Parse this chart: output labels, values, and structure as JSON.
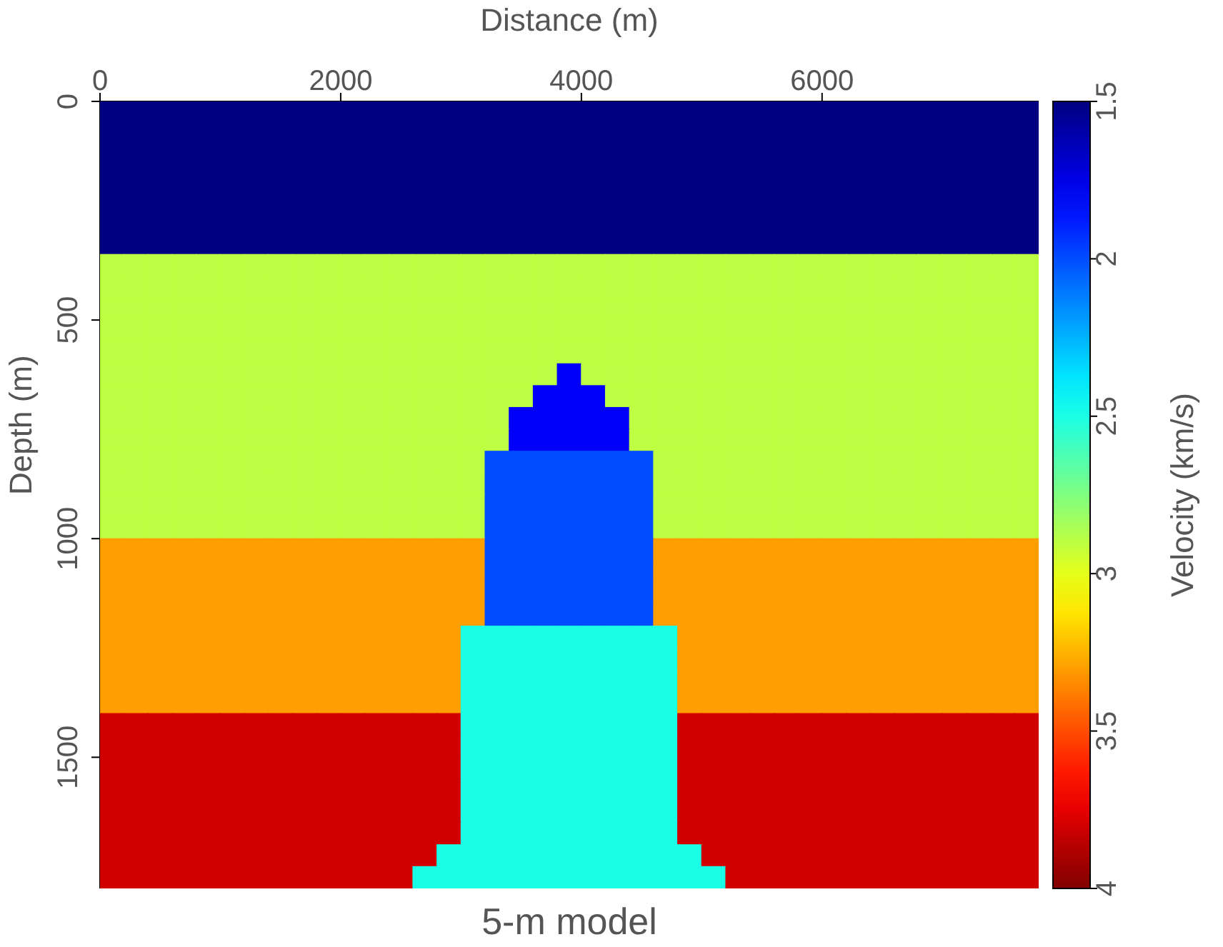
{
  "chart_data": {
    "type": "heatmap",
    "title": "5-m model",
    "xlabel": "Distance (m)",
    "ylabel": "Depth (m)",
    "clabel": "Velocity (km/s)",
    "xlim": [
      0,
      7800
    ],
    "ylim": [
      1800,
      0
    ],
    "xticks": [
      0,
      2000,
      4000,
      6000
    ],
    "yticks": [
      0,
      500,
      1000,
      1500
    ],
    "clim": [
      1.5,
      4
    ],
    "cticks": [
      1.5,
      2,
      2.5,
      3,
      3.5,
      4
    ],
    "cells": [
      [
        1.5,
        1.5,
        1.5,
        1.5,
        1.5,
        1.5,
        1.5,
        1.5,
        1.5,
        1.5,
        1.5,
        1.5,
        1.5,
        1.5,
        1.5,
        1.5,
        1.5,
        1.5,
        1.5,
        1.5,
        1.5,
        1.5,
        1.5,
        1.5,
        1.5,
        1.5,
        1.5,
        1.5,
        1.5,
        1.5,
        1.5,
        1.5,
        1.5,
        1.5,
        1.5,
        1.5,
        1.5,
        1.5,
        1.5
      ],
      [
        1.5,
        1.5,
        1.5,
        1.5,
        1.5,
        1.5,
        1.5,
        1.5,
        1.5,
        1.5,
        1.5,
        1.5,
        1.5,
        1.5,
        1.5,
        1.5,
        1.5,
        1.5,
        1.5,
        1.5,
        1.5,
        1.5,
        1.5,
        1.5,
        1.5,
        1.5,
        1.5,
        1.5,
        1.5,
        1.5,
        1.5,
        1.5,
        1.5,
        1.5,
        1.5,
        1.5,
        1.5,
        1.5,
        1.5
      ],
      [
        1.5,
        1.5,
        1.5,
        1.5,
        1.5,
        1.5,
        1.5,
        1.5,
        1.5,
        1.5,
        1.5,
        1.5,
        1.5,
        1.5,
        1.5,
        1.5,
        1.5,
        1.5,
        1.5,
        1.5,
        1.5,
        1.5,
        1.5,
        1.5,
        1.5,
        1.5,
        1.5,
        1.5,
        1.5,
        1.5,
        1.5,
        1.5,
        1.5,
        1.5,
        1.5,
        1.5,
        1.5,
        1.5,
        1.5
      ],
      [
        1.5,
        1.5,
        1.5,
        1.5,
        1.5,
        1.5,
        1.5,
        1.5,
        1.5,
        1.5,
        1.5,
        1.5,
        1.5,
        1.5,
        1.5,
        1.5,
        1.5,
        1.5,
        1.5,
        1.5,
        1.5,
        1.5,
        1.5,
        1.5,
        1.5,
        1.5,
        1.5,
        1.5,
        1.5,
        1.5,
        1.5,
        1.5,
        1.5,
        1.5,
        1.5,
        1.5,
        1.5,
        1.5,
        1.5
      ],
      [
        1.5,
        1.5,
        1.5,
        1.5,
        1.5,
        1.5,
        1.5,
        1.5,
        1.5,
        1.5,
        1.5,
        1.5,
        1.5,
        1.5,
        1.5,
        1.5,
        1.5,
        1.5,
        1.5,
        1.5,
        1.5,
        1.5,
        1.5,
        1.5,
        1.5,
        1.5,
        1.5,
        1.5,
        1.5,
        1.5,
        1.5,
        1.5,
        1.5,
        1.5,
        1.5,
        1.5,
        1.5,
        1.5,
        1.5
      ],
      [
        1.5,
        1.5,
        1.5,
        1.5,
        1.5,
        1.5,
        1.5,
        1.5,
        1.5,
        1.5,
        1.5,
        1.5,
        1.5,
        1.5,
        1.5,
        1.5,
        1.5,
        1.5,
        1.5,
        1.5,
        1.5,
        1.5,
        1.5,
        1.5,
        1.5,
        1.5,
        1.5,
        1.5,
        1.5,
        1.5,
        1.5,
        1.5,
        1.5,
        1.5,
        1.5,
        1.5,
        1.5,
        1.5,
        1.5
      ],
      [
        1.5,
        1.5,
        1.5,
        1.5,
        1.5,
        1.5,
        1.5,
        1.5,
        1.5,
        1.5,
        1.5,
        1.5,
        1.5,
        1.5,
        1.5,
        1.5,
        1.5,
        1.5,
        1.5,
        1.5,
        1.5,
        1.5,
        1.5,
        1.5,
        1.5,
        1.5,
        1.5,
        1.5,
        1.5,
        1.5,
        1.5,
        1.5,
        1.5,
        1.5,
        1.5,
        1.5,
        1.5,
        1.5,
        1.5
      ],
      [
        2.9,
        2.9,
        2.9,
        2.9,
        2.9,
        2.9,
        2.9,
        2.9,
        2.9,
        2.9,
        2.9,
        2.9,
        2.9,
        2.9,
        2.9,
        2.9,
        2.9,
        2.9,
        2.9,
        2.9,
        2.9,
        2.9,
        2.9,
        2.9,
        2.9,
        2.9,
        2.9,
        2.9,
        2.9,
        2.9,
        2.9,
        2.9,
        2.9,
        2.9,
        2.9,
        2.9,
        2.9,
        2.9,
        2.9
      ],
      [
        2.9,
        2.9,
        2.9,
        2.9,
        2.9,
        2.9,
        2.9,
        2.9,
        2.9,
        2.9,
        2.9,
        2.9,
        2.9,
        2.9,
        2.9,
        2.9,
        2.9,
        2.9,
        2.9,
        2.9,
        2.9,
        2.9,
        2.9,
        2.9,
        2.9,
        2.9,
        2.9,
        2.9,
        2.9,
        2.9,
        2.9,
        2.9,
        2.9,
        2.9,
        2.9,
        2.9,
        2.9,
        2.9,
        2.9
      ],
      [
        2.9,
        2.9,
        2.9,
        2.9,
        2.9,
        2.9,
        2.9,
        2.9,
        2.9,
        2.9,
        2.9,
        2.9,
        2.9,
        2.9,
        2.9,
        2.9,
        2.9,
        2.9,
        2.9,
        2.9,
        2.9,
        2.9,
        2.9,
        2.9,
        2.9,
        2.9,
        2.9,
        2.9,
        2.9,
        2.9,
        2.9,
        2.9,
        2.9,
        2.9,
        2.9,
        2.9,
        2.9,
        2.9,
        2.9
      ],
      [
        2.9,
        2.9,
        2.9,
        2.9,
        2.9,
        2.9,
        2.9,
        2.9,
        2.9,
        2.9,
        2.9,
        2.9,
        2.9,
        2.9,
        2.9,
        2.9,
        2.9,
        2.9,
        2.9,
        2.9,
        2.9,
        2.9,
        2.9,
        2.9,
        2.9,
        2.9,
        2.9,
        2.9,
        2.9,
        2.9,
        2.9,
        2.9,
        2.9,
        2.9,
        2.9,
        2.9,
        2.9,
        2.9,
        2.9
      ],
      [
        2.9,
        2.9,
        2.9,
        2.9,
        2.9,
        2.9,
        2.9,
        2.9,
        2.9,
        2.9,
        2.9,
        2.9,
        2.9,
        2.9,
        2.9,
        2.9,
        2.9,
        2.9,
        2.9,
        2.9,
        2.9,
        2.9,
        2.9,
        2.9,
        2.9,
        2.9,
        2.9,
        2.9,
        2.9,
        2.9,
        2.9,
        2.9,
        2.9,
        2.9,
        2.9,
        2.9,
        2.9,
        2.9,
        2.9
      ],
      [
        2.9,
        2.9,
        2.9,
        2.9,
        2.9,
        2.9,
        2.9,
        2.9,
        2.9,
        2.9,
        2.9,
        2.9,
        2.9,
        2.9,
        2.9,
        2.9,
        2.9,
        2.9,
        2.9,
        1.8,
        2.9,
        2.9,
        2.9,
        2.9,
        2.9,
        2.9,
        2.9,
        2.9,
        2.9,
        2.9,
        2.9,
        2.9,
        2.9,
        2.9,
        2.9,
        2.9,
        2.9,
        2.9,
        2.9
      ],
      [
        2.9,
        2.9,
        2.9,
        2.9,
        2.9,
        2.9,
        2.9,
        2.9,
        2.9,
        2.9,
        2.9,
        2.9,
        2.9,
        2.9,
        2.9,
        2.9,
        2.9,
        2.9,
        1.8,
        1.8,
        1.8,
        2.9,
        2.9,
        2.9,
        2.9,
        2.9,
        2.9,
        2.9,
        2.9,
        2.9,
        2.9,
        2.9,
        2.9,
        2.9,
        2.9,
        2.9,
        2.9,
        2.9,
        2.9
      ],
      [
        2.9,
        2.9,
        2.9,
        2.9,
        2.9,
        2.9,
        2.9,
        2.9,
        2.9,
        2.9,
        2.9,
        2.9,
        2.9,
        2.9,
        2.9,
        2.9,
        2.9,
        1.8,
        1.8,
        1.8,
        1.8,
        1.8,
        2.9,
        2.9,
        2.9,
        2.9,
        2.9,
        2.9,
        2.9,
        2.9,
        2.9,
        2.9,
        2.9,
        2.9,
        2.9,
        2.9,
        2.9,
        2.9,
        2.9
      ],
      [
        2.9,
        2.9,
        2.9,
        2.9,
        2.9,
        2.9,
        2.9,
        2.9,
        2.9,
        2.9,
        2.9,
        2.9,
        2.9,
        2.9,
        2.9,
        2.9,
        2.9,
        1.8,
        1.8,
        1.8,
        1.8,
        1.8,
        2.9,
        2.9,
        2.9,
        2.9,
        2.9,
        2.9,
        2.9,
        2.9,
        2.9,
        2.9,
        2.9,
        2.9,
        2.9,
        2.9,
        2.9,
        2.9,
        2.9
      ],
      [
        2.9,
        2.9,
        2.9,
        2.9,
        2.9,
        2.9,
        2.9,
        2.9,
        2.9,
        2.9,
        2.9,
        2.9,
        2.9,
        2.9,
        2.9,
        2.9,
        2.0,
        2.0,
        2.0,
        2.0,
        2.0,
        2.0,
        2.0,
        2.9,
        2.9,
        2.9,
        2.9,
        2.9,
        2.9,
        2.9,
        2.9,
        2.9,
        2.9,
        2.9,
        2.9,
        2.9,
        2.9,
        2.9,
        2.9
      ],
      [
        2.9,
        2.9,
        2.9,
        2.9,
        2.9,
        2.9,
        2.9,
        2.9,
        2.9,
        2.9,
        2.9,
        2.9,
        2.9,
        2.9,
        2.9,
        2.9,
        2.0,
        2.0,
        2.0,
        2.0,
        2.0,
        2.0,
        2.0,
        2.9,
        2.9,
        2.9,
        2.9,
        2.9,
        2.9,
        2.9,
        2.9,
        2.9,
        2.9,
        2.9,
        2.9,
        2.9,
        2.9,
        2.9,
        2.9
      ],
      [
        2.9,
        2.9,
        2.9,
        2.9,
        2.9,
        2.9,
        2.9,
        2.9,
        2.9,
        2.9,
        2.9,
        2.9,
        2.9,
        2.9,
        2.9,
        2.9,
        2.0,
        2.0,
        2.0,
        2.0,
        2.0,
        2.0,
        2.0,
        2.9,
        2.9,
        2.9,
        2.9,
        2.9,
        2.9,
        2.9,
        2.9,
        2.9,
        2.9,
        2.9,
        2.9,
        2.9,
        2.9,
        2.9,
        2.9
      ],
      [
        2.9,
        2.9,
        2.9,
        2.9,
        2.9,
        2.9,
        2.9,
        2.9,
        2.9,
        2.9,
        2.9,
        2.9,
        2.9,
        2.9,
        2.9,
        2.9,
        2.0,
        2.0,
        2.0,
        2.0,
        2.0,
        2.0,
        2.0,
        2.9,
        2.9,
        2.9,
        2.9,
        2.9,
        2.9,
        2.9,
        2.9,
        2.9,
        2.9,
        2.9,
        2.9,
        2.9,
        2.9,
        2.9,
        2.9
      ],
      [
        3.3,
        3.3,
        3.3,
        3.3,
        3.3,
        3.3,
        3.3,
        3.3,
        3.3,
        3.3,
        3.3,
        3.3,
        3.3,
        3.3,
        3.3,
        3.3,
        2.0,
        2.0,
        2.0,
        2.0,
        2.0,
        2.0,
        2.0,
        3.3,
        3.3,
        3.3,
        3.3,
        3.3,
        3.3,
        3.3,
        3.3,
        3.3,
        3.3,
        3.3,
        3.3,
        3.3,
        3.3,
        3.3,
        3.3
      ],
      [
        3.3,
        3.3,
        3.3,
        3.3,
        3.3,
        3.3,
        3.3,
        3.3,
        3.3,
        3.3,
        3.3,
        3.3,
        3.3,
        3.3,
        3.3,
        3.3,
        2.0,
        2.0,
        2.0,
        2.0,
        2.0,
        2.0,
        2.0,
        3.3,
        3.3,
        3.3,
        3.3,
        3.3,
        3.3,
        3.3,
        3.3,
        3.3,
        3.3,
        3.3,
        3.3,
        3.3,
        3.3,
        3.3,
        3.3
      ],
      [
        3.3,
        3.3,
        3.3,
        3.3,
        3.3,
        3.3,
        3.3,
        3.3,
        3.3,
        3.3,
        3.3,
        3.3,
        3.3,
        3.3,
        3.3,
        3.3,
        2.0,
        2.0,
        2.0,
        2.0,
        2.0,
        2.0,
        2.0,
        3.3,
        3.3,
        3.3,
        3.3,
        3.3,
        3.3,
        3.3,
        3.3,
        3.3,
        3.3,
        3.3,
        3.3,
        3.3,
        3.3,
        3.3,
        3.3
      ],
      [
        3.3,
        3.3,
        3.3,
        3.3,
        3.3,
        3.3,
        3.3,
        3.3,
        3.3,
        3.3,
        3.3,
        3.3,
        3.3,
        3.3,
        3.3,
        3.3,
        2.0,
        2.0,
        2.0,
        2.0,
        2.0,
        2.0,
        2.0,
        3.3,
        3.3,
        3.3,
        3.3,
        3.3,
        3.3,
        3.3,
        3.3,
        3.3,
        3.3,
        3.3,
        3.3,
        3.3,
        3.3,
        3.3,
        3.3
      ],
      [
        3.3,
        3.3,
        3.3,
        3.3,
        3.3,
        3.3,
        3.3,
        3.3,
        3.3,
        3.3,
        3.3,
        3.3,
        3.3,
        3.3,
        3.3,
        2.5,
        2.5,
        2.5,
        2.5,
        2.5,
        2.5,
        2.5,
        2.5,
        2.5,
        3.3,
        3.3,
        3.3,
        3.3,
        3.3,
        3.3,
        3.3,
        3.3,
        3.3,
        3.3,
        3.3,
        3.3,
        3.3,
        3.3,
        3.3
      ],
      [
        3.3,
        3.3,
        3.3,
        3.3,
        3.3,
        3.3,
        3.3,
        3.3,
        3.3,
        3.3,
        3.3,
        3.3,
        3.3,
        3.3,
        3.3,
        2.5,
        2.5,
        2.5,
        2.5,
        2.5,
        2.5,
        2.5,
        2.5,
        2.5,
        3.3,
        3.3,
        3.3,
        3.3,
        3.3,
        3.3,
        3.3,
        3.3,
        3.3,
        3.3,
        3.3,
        3.3,
        3.3,
        3.3,
        3.3
      ],
      [
        3.3,
        3.3,
        3.3,
        3.3,
        3.3,
        3.3,
        3.3,
        3.3,
        3.3,
        3.3,
        3.3,
        3.3,
        3.3,
        3.3,
        3.3,
        2.5,
        2.5,
        2.5,
        2.5,
        2.5,
        2.5,
        2.5,
        2.5,
        2.5,
        3.3,
        3.3,
        3.3,
        3.3,
        3.3,
        3.3,
        3.3,
        3.3,
        3.3,
        3.3,
        3.3,
        3.3,
        3.3,
        3.3,
        3.3
      ],
      [
        3.3,
        3.3,
        3.3,
        3.3,
        3.3,
        3.3,
        3.3,
        3.3,
        3.3,
        3.3,
        3.3,
        3.3,
        3.3,
        3.3,
        3.3,
        2.5,
        2.5,
        2.5,
        2.5,
        2.5,
        2.5,
        2.5,
        2.5,
        2.5,
        3.3,
        3.3,
        3.3,
        3.3,
        3.3,
        3.3,
        3.3,
        3.3,
        3.3,
        3.3,
        3.3,
        3.3,
        3.3,
        3.3,
        3.3
      ],
      [
        3.8,
        3.8,
        3.8,
        3.8,
        3.8,
        3.8,
        3.8,
        3.8,
        3.8,
        3.8,
        3.8,
        3.8,
        3.8,
        3.8,
        3.8,
        2.5,
        2.5,
        2.5,
        2.5,
        2.5,
        2.5,
        2.5,
        2.5,
        2.5,
        3.8,
        3.8,
        3.8,
        3.8,
        3.8,
        3.8,
        3.8,
        3.8,
        3.8,
        3.8,
        3.8,
        3.8,
        3.8,
        3.8,
        3.8
      ],
      [
        3.8,
        3.8,
        3.8,
        3.8,
        3.8,
        3.8,
        3.8,
        3.8,
        3.8,
        3.8,
        3.8,
        3.8,
        3.8,
        3.8,
        3.8,
        2.5,
        2.5,
        2.5,
        2.5,
        2.5,
        2.5,
        2.5,
        2.5,
        2.5,
        3.8,
        3.8,
        3.8,
        3.8,
        3.8,
        3.8,
        3.8,
        3.8,
        3.8,
        3.8,
        3.8,
        3.8,
        3.8,
        3.8,
        3.8
      ],
      [
        3.8,
        3.8,
        3.8,
        3.8,
        3.8,
        3.8,
        3.8,
        3.8,
        3.8,
        3.8,
        3.8,
        3.8,
        3.8,
        3.8,
        3.8,
        2.5,
        2.5,
        2.5,
        2.5,
        2.5,
        2.5,
        2.5,
        2.5,
        2.5,
        3.8,
        3.8,
        3.8,
        3.8,
        3.8,
        3.8,
        3.8,
        3.8,
        3.8,
        3.8,
        3.8,
        3.8,
        3.8,
        3.8,
        3.8
      ],
      [
        3.8,
        3.8,
        3.8,
        3.8,
        3.8,
        3.8,
        3.8,
        3.8,
        3.8,
        3.8,
        3.8,
        3.8,
        3.8,
        3.8,
        3.8,
        2.5,
        2.5,
        2.5,
        2.5,
        2.5,
        2.5,
        2.5,
        2.5,
        2.5,
        3.8,
        3.8,
        3.8,
        3.8,
        3.8,
        3.8,
        3.8,
        3.8,
        3.8,
        3.8,
        3.8,
        3.8,
        3.8,
        3.8,
        3.8
      ],
      [
        3.8,
        3.8,
        3.8,
        3.8,
        3.8,
        3.8,
        3.8,
        3.8,
        3.8,
        3.8,
        3.8,
        3.8,
        3.8,
        3.8,
        3.8,
        2.5,
        2.5,
        2.5,
        2.5,
        2.5,
        2.5,
        2.5,
        2.5,
        2.5,
        3.8,
        3.8,
        3.8,
        3.8,
        3.8,
        3.8,
        3.8,
        3.8,
        3.8,
        3.8,
        3.8,
        3.8,
        3.8,
        3.8,
        3.8
      ],
      [
        3.8,
        3.8,
        3.8,
        3.8,
        3.8,
        3.8,
        3.8,
        3.8,
        3.8,
        3.8,
        3.8,
        3.8,
        3.8,
        3.8,
        3.8,
        2.5,
        2.5,
        2.5,
        2.5,
        2.5,
        2.5,
        2.5,
        2.5,
        2.5,
        3.8,
        3.8,
        3.8,
        3.8,
        3.8,
        3.8,
        3.8,
        3.8,
        3.8,
        3.8,
        3.8,
        3.8,
        3.8,
        3.8,
        3.8
      ],
      [
        3.8,
        3.8,
        3.8,
        3.8,
        3.8,
        3.8,
        3.8,
        3.8,
        3.8,
        3.8,
        3.8,
        3.8,
        3.8,
        3.8,
        2.5,
        2.5,
        2.5,
        2.5,
        2.5,
        2.5,
        2.5,
        2.5,
        2.5,
        2.5,
        2.5,
        3.8,
        3.8,
        3.8,
        3.8,
        3.8,
        3.8,
        3.8,
        3.8,
        3.8,
        3.8,
        3.8,
        3.8,
        3.8,
        3.8
      ],
      [
        3.8,
        3.8,
        3.8,
        3.8,
        3.8,
        3.8,
        3.8,
        3.8,
        3.8,
        3.8,
        3.8,
        3.8,
        3.8,
        2.5,
        2.5,
        2.5,
        2.5,
        2.5,
        2.5,
        2.5,
        2.5,
        2.5,
        2.5,
        2.5,
        2.5,
        2.5,
        3.8,
        3.8,
        3.8,
        3.8,
        3.8,
        3.8,
        3.8,
        3.8,
        3.8,
        3.8,
        3.8,
        3.8,
        3.8
      ]
    ]
  }
}
